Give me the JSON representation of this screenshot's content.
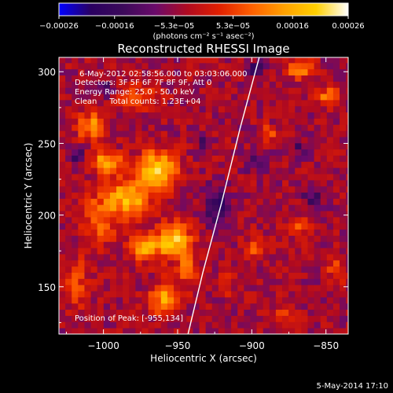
{
  "chart_data": {
    "type": "heatmap",
    "title": "Reconstructed RHESSI Image",
    "xlabel": "Heliocentric X (arcsec)",
    "ylabel": "Heliocentric Y (arcsec)",
    "xlim": [
      -1030,
      -835
    ],
    "ylim": [
      117,
      310
    ],
    "xticks": [
      -1000,
      -950,
      -900,
      -850
    ],
    "xtick_labels": [
      "−1000",
      "−950",
      "−900",
      "−850"
    ],
    "yticks": [
      150,
      200,
      250,
      300
    ],
    "ytick_labels": [
      "150",
      "200",
      "250",
      "300"
    ],
    "colorbar": {
      "range": [
        -0.00026,
        0.00026
      ],
      "ticks": [
        -0.00026,
        -0.00016,
        -5.3e-05,
        5.3e-05,
        0.00016,
        0.00026
      ],
      "tick_labels": [
        "−0.00026",
        "−0.00016",
        "−5.3e−05",
        "5.3e−05",
        "0.00016",
        "0.00026"
      ],
      "unit_label": "(photons cm⁻² s⁻¹ asec⁻²)",
      "colormap": [
        "#0000ff",
        "#2a0060",
        "#3c0a5a",
        "#6a0a6a",
        "#b00a20",
        "#e02000",
        "#ff6000",
        "#ffa000",
        "#ffd000",
        "#ffffff"
      ]
    },
    "annotations": [
      "6-May-2012 02:58:56.000 to 03:03:06.000",
      "Detectors: 3F 5F 6F 7F 8F 9F, Att 0",
      "Energy Range: 25.0 - 50.0 keV",
      "Clean     Total counts: 1.23E+04"
    ],
    "peak_label": "Position of Peak: [-955,134]",
    "peak_position": [
      -955,
      134
    ],
    "limb_curve_x": [
      [
        310,
        -895
      ],
      [
        260,
        -908
      ],
      [
        210,
        -920
      ],
      [
        160,
        -933
      ],
      [
        117,
        -943
      ]
    ],
    "hot_regions": [
      {
        "x": -965,
        "y": 230,
        "w": 28,
        "h": 28,
        "v": 0.00025
      },
      {
        "x": -985,
        "y": 210,
        "w": 30,
        "h": 30,
        "v": 0.00022
      },
      {
        "x": -1010,
        "y": 260,
        "w": 20,
        "h": 20,
        "v": 0.00018
      },
      {
        "x": -1000,
        "y": 235,
        "w": 22,
        "h": 18,
        "v": 0.0002
      },
      {
        "x": -955,
        "y": 180,
        "w": 26,
        "h": 26,
        "v": 0.00024
      },
      {
        "x": -975,
        "y": 175,
        "w": 20,
        "h": 18,
        "v": 0.00021
      },
      {
        "x": -945,
        "y": 160,
        "w": 12,
        "h": 20,
        "v": 0.00017
      },
      {
        "x": -960,
        "y": 140,
        "w": 22,
        "h": 24,
        "v": 0.00019
      },
      {
        "x": -1005,
        "y": 195,
        "w": 25,
        "h": 40,
        "v": 0.00012
      },
      {
        "x": -1020,
        "y": 150,
        "w": 18,
        "h": 40,
        "v": 9e-05
      },
      {
        "x": -980,
        "y": 280,
        "w": 30,
        "h": 20,
        "v": 0.00011
      },
      {
        "x": -870,
        "y": 300,
        "w": 20,
        "h": 14,
        "v": 0.00015
      },
      {
        "x": -850,
        "y": 280,
        "w": 16,
        "h": 14,
        "v": 0.00016
      },
      {
        "x": -890,
        "y": 255,
        "w": 14,
        "h": 12,
        "v": 0.00012
      },
      {
        "x": -900,
        "y": 175,
        "w": 14,
        "h": 20,
        "v": 0.0001
      },
      {
        "x": -870,
        "y": 190,
        "w": 16,
        "h": 16,
        "v": 9e-05
      },
      {
        "x": -845,
        "y": 160,
        "w": 14,
        "h": 18,
        "v": 0.0001
      },
      {
        "x": -880,
        "y": 130,
        "w": 16,
        "h": 14,
        "v": 9e-05
      },
      {
        "x": -920,
        "y": 150,
        "w": 14,
        "h": 16,
        "v": 8e-05
      }
    ],
    "cold_regions": [
      {
        "x": -925,
        "y": 205,
        "w": 18,
        "h": 28,
        "v": -0.00014
      },
      {
        "x": -900,
        "y": 300,
        "w": 14,
        "h": 12,
        "v": -0.00012
      },
      {
        "x": -860,
        "y": 210,
        "w": 16,
        "h": 18,
        "v": -0.0001
      },
      {
        "x": -1000,
        "y": 285,
        "w": 14,
        "h": 12,
        "v": -0.00011
      },
      {
        "x": -1020,
        "y": 240,
        "w": 12,
        "h": 14,
        "v": -0.0001
      },
      {
        "x": -900,
        "y": 235,
        "w": 14,
        "h": 14,
        "v": -9e-05
      },
      {
        "x": -870,
        "y": 245,
        "w": 12,
        "h": 12,
        "v": -8e-05
      },
      {
        "x": -935,
        "y": 250,
        "w": 12,
        "h": 12,
        "v": -8e-05
      }
    ]
  },
  "footer": {
    "timestamp": "5-May-2014 17:10"
  }
}
